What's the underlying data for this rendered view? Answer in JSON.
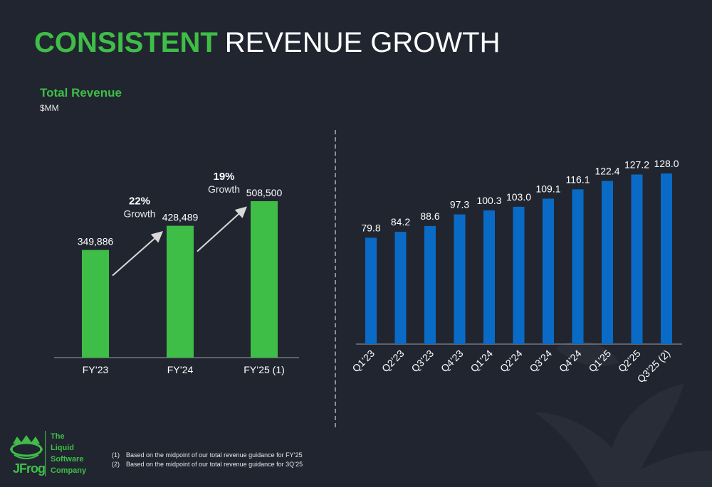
{
  "title": {
    "highlight": "CONSISTENT",
    "rest": "REVENUE GROWTH"
  },
  "subtitle": "Total Revenue",
  "unit": "$MM",
  "colors": {
    "background": "#212530",
    "green": "#3fbe47",
    "blue": "#0a6bc6",
    "divider": "#8a8f99"
  },
  "chart_data": [
    {
      "type": "bar",
      "categories": [
        "FY’23",
        "FY’24",
        "FY’25 (1)"
      ],
      "values": [
        349886,
        428489,
        508500
      ],
      "labels": [
        "349,886",
        "428,489",
        "508,500"
      ],
      "annotations": [
        {
          "percent": "22%",
          "text": "Growth"
        },
        {
          "percent": "19%",
          "text": "Growth"
        }
      ]
    },
    {
      "type": "bar",
      "categories": [
        "Q1’23",
        "Q2’23",
        "Q3’23",
        "Q4’23",
        "Q1’24",
        "Q2’24",
        "Q3’24",
        "Q4’24",
        "Q1’25",
        "Q2’25",
        "Q3’25 (2)"
      ],
      "values": [
        79.8,
        84.2,
        88.6,
        97.3,
        100.3,
        103.0,
        109.1,
        116.1,
        122.4,
        127.2,
        128.0
      ],
      "labels": [
        "79.8",
        "84.2",
        "88.6",
        "97.3",
        "100.3",
        "103.0",
        "109.1",
        "116.1",
        "122.4",
        "127.2",
        "128.0"
      ]
    }
  ],
  "logo": {
    "name": "JFrog",
    "icon": "frog-crown-icon",
    "tagline": [
      "The",
      "Liquid",
      "Software",
      "Company"
    ]
  },
  "footnotes": [
    {
      "num": "(1)",
      "text": "Based on the midpoint of our total revenue guidance for FY’25"
    },
    {
      "num": "(2)",
      "text": "Based on the midpoint of our total revenue guidance for 3Q’25"
    }
  ]
}
